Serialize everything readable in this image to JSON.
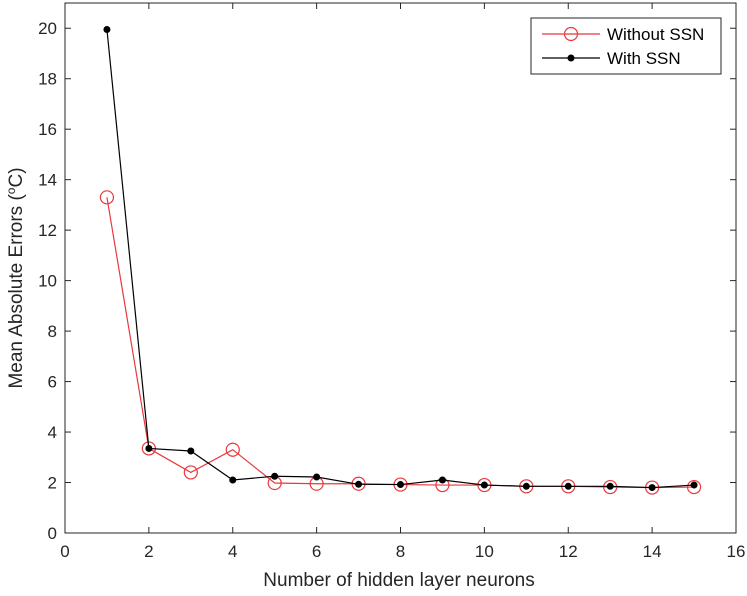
{
  "chart_data": {
    "type": "line",
    "title": "",
    "xlabel": "Number of hidden layer neurons",
    "ylabel_main": "Mean Absolute Errors (",
    "ylabel_sup": "o",
    "ylabel_unit": "C)",
    "xlim": [
      0,
      16
    ],
    "ylim": [
      0,
      21
    ],
    "xticks": [
      0,
      2,
      4,
      6,
      8,
      10,
      12,
      14,
      16
    ],
    "yticks": [
      0,
      2,
      4,
      6,
      8,
      10,
      12,
      14,
      16,
      18,
      20
    ],
    "grid": false,
    "legend_position": "top-right",
    "x": [
      1,
      2,
      3,
      4,
      5,
      6,
      7,
      8,
      9,
      10,
      11,
      12,
      13,
      14,
      15
    ],
    "series": [
      {
        "name": "Without SSN",
        "color": "#e8383d",
        "marker": "open-circle",
        "values": [
          13.3,
          3.35,
          2.4,
          3.3,
          1.98,
          1.95,
          1.95,
          1.92,
          1.9,
          1.9,
          1.85,
          1.85,
          1.82,
          1.8,
          1.82
        ]
      },
      {
        "name": "With SSN",
        "color": "#000000",
        "marker": "filled-dot",
        "values": [
          19.95,
          3.35,
          3.25,
          2.1,
          2.25,
          2.22,
          1.93,
          1.92,
          2.1,
          1.9,
          1.85,
          1.85,
          1.85,
          1.8,
          1.9
        ]
      }
    ]
  }
}
